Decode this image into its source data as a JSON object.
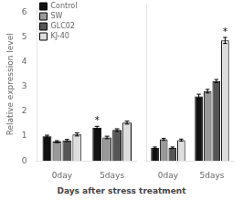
{
  "chart_data": [
    {
      "type": "bar",
      "xlabel": "Days after stress treatment",
      "ylabel": "Relative expression level",
      "categories": [
        "0day",
        "5days"
      ],
      "series": [
        {
          "name": "Control",
          "color": "#111111",
          "values": [
            1.0,
            1.35
          ],
          "errors": [
            0.04,
            0.05
          ]
        },
        {
          "name": "SW",
          "color": "#999999",
          "values": [
            0.78,
            0.95
          ],
          "errors": [
            0.04,
            0.05
          ]
        },
        {
          "name": "GLC02",
          "color": "#555555",
          "values": [
            0.83,
            1.25
          ],
          "errors": [
            0.04,
            0.05
          ]
        },
        {
          "name": "KJ-40",
          "color": "#dddddd",
          "values": [
            1.07,
            1.55
          ],
          "errors": [
            0.06,
            0.06
          ]
        }
      ],
      "ylim": [
        0,
        6.2
      ],
      "yticks": [
        0,
        1,
        2,
        3,
        4,
        5,
        6
      ],
      "grid": false,
      "legend": "upper left",
      "annotations": [
        {
          "text": "*",
          "series": "Control",
          "category": "5days"
        }
      ]
    },
    {
      "type": "bar",
      "categories": [
        "0day",
        "5days"
      ],
      "series": [
        {
          "name": "Control",
          "color": "#111111",
          "values": [
            0.52,
            2.55
          ],
          "errors": [
            0.03,
            0.08
          ]
        },
        {
          "name": "SW",
          "color": "#999999",
          "values": [
            0.85,
            2.75
          ],
          "errors": [
            0.04,
            0.07
          ]
        },
        {
          "name": "GLC02",
          "color": "#555555",
          "values": [
            0.52,
            3.15
          ],
          "errors": [
            0.03,
            0.06
          ]
        },
        {
          "name": "KJ-40",
          "color": "#dddddd",
          "values": [
            0.82,
            4.75
          ],
          "errors": [
            0.04,
            0.12
          ]
        }
      ],
      "ylim": [
        0,
        6.2
      ],
      "yticks": [
        0,
        1,
        2,
        3,
        4,
        5,
        6
      ],
      "grid": false,
      "tick_labels": "x",
      "annotations": [
        {
          "text": "*",
          "series": "KJ-40",
          "category": "5days"
        }
      ]
    }
  ]
}
